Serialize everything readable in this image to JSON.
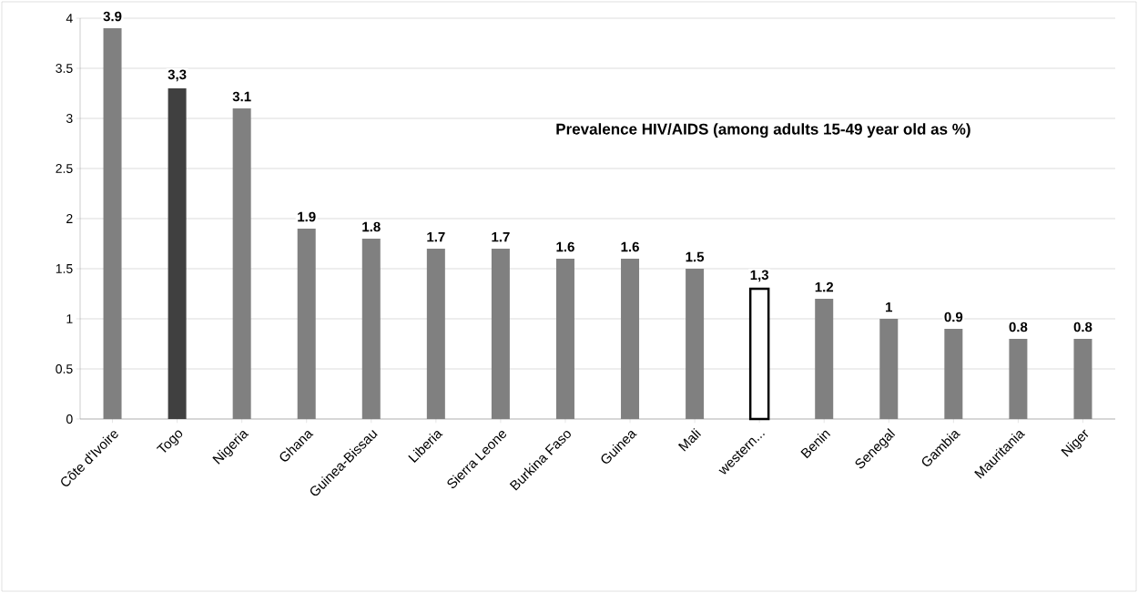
{
  "chart_data": {
    "type": "bar",
    "title": "Prevalence HIV/AIDS (among adults 15-49 year old as %)",
    "categories": [
      "Côte d'Ivoire",
      "Togo",
      "Nigeria",
      "Ghana",
      "Guinea-Bissau",
      "Liberia",
      "Sierra Leone",
      "Burkina Faso",
      "Guinea",
      "Mali",
      "western...",
      "Benin",
      "Senegal",
      "Gambia",
      "Mauritania",
      "Niger"
    ],
    "values": [
      3.9,
      3.3,
      3.1,
      1.9,
      1.8,
      1.7,
      1.7,
      1.6,
      1.6,
      1.5,
      1.3,
      1.2,
      1,
      0.9,
      0.8,
      0.8
    ],
    "value_labels": [
      "3.9",
      "3,3",
      "3.1",
      "1.9",
      "1.8",
      "1.7",
      "1.7",
      "1.6",
      "1.6",
      "1.5",
      "1,3",
      "1.2",
      "1",
      "0.9",
      "0.8",
      "0.8"
    ],
    "colors": [
      "#808080",
      "#404040",
      "#808080",
      "#808080",
      "#808080",
      "#808080",
      "#808080",
      "#808080",
      "#808080",
      "#808080",
      "#ffffff",
      "#808080",
      "#808080",
      "#808080",
      "#808080",
      "#808080"
    ],
    "ylim": [
      0,
      4
    ],
    "yticks": [
      0,
      0.5,
      1,
      1.5,
      2,
      2.5,
      3,
      3.5,
      4
    ],
    "grid": "y"
  }
}
